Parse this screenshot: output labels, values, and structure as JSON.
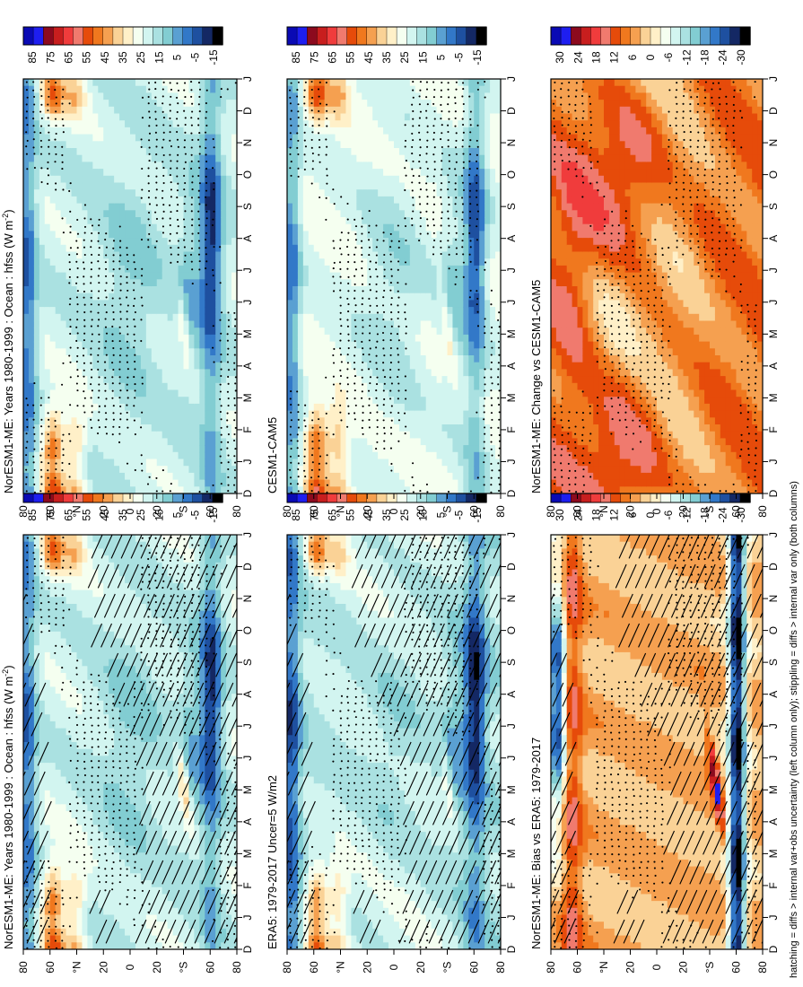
{
  "figure": {
    "footer": "hatching = diffs > internal var+obs uncertainty (left column only); stippling = diffs > internal var only (both columns)"
  },
  "chart_data": [
    {
      "type": "heatmap",
      "panel": "left-top",
      "title": "NorESM1-ME: Years 1980-1999 : Ocean : hfss (W m",
      "title_sup": "-2",
      "title_close": ")",
      "months": [
        "D",
        "J",
        "F",
        "M",
        "A",
        "M",
        "J",
        "J",
        "A",
        "S",
        "O",
        "N",
        "D",
        "J"
      ],
      "lat_ticks": [
        "80",
        "60",
        "°N",
        "20",
        "0",
        "20",
        "°S",
        "60",
        "80"
      ],
      "colorbar": [
        "85",
        "75",
        "65",
        "55",
        "45",
        "35",
        "25",
        "15",
        "5",
        "-5",
        "-15"
      ],
      "scale": "abs",
      "hatching": true,
      "stippling": true
    },
    {
      "type": "heatmap",
      "panel": "right-top",
      "title": "NorESM1-ME: Years 1980-1999 : Ocean : hfss (W m",
      "title_sup": "-2",
      "title_close": ")",
      "months": [
        "D",
        "J",
        "F",
        "M",
        "A",
        "M",
        "J",
        "J",
        "A",
        "S",
        "O",
        "N",
        "D",
        "J"
      ],
      "lat_ticks": [
        "80",
        "60",
        "°N",
        "20",
        "0",
        "20",
        "°S",
        "60",
        "80"
      ],
      "colorbar": [
        "85",
        "75",
        "65",
        "55",
        "45",
        "35",
        "25",
        "15",
        "5",
        "-5",
        "-15"
      ],
      "scale": "abs",
      "hatching": false,
      "stippling": true
    },
    {
      "type": "heatmap",
      "panel": "left-middle",
      "title": "ERA5: 1979-2017 Uncer=5 W/m2",
      "months": [
        "D",
        "J",
        "F",
        "M",
        "A",
        "M",
        "J",
        "J",
        "A",
        "S",
        "O",
        "N",
        "D",
        "J"
      ],
      "lat_ticks": [
        "80",
        "60",
        "°N",
        "20",
        "0",
        "20",
        "°S",
        "60",
        "80"
      ],
      "colorbar": [
        "85",
        "75",
        "65",
        "55",
        "45",
        "35",
        "25",
        "15",
        "5",
        "-5",
        "-15"
      ],
      "scale": "abs",
      "hatching": true,
      "stippling": true
    },
    {
      "type": "heatmap",
      "panel": "right-middle",
      "title": "CESM1-CAM5",
      "months": [
        "D",
        "J",
        "F",
        "M",
        "A",
        "M",
        "J",
        "J",
        "A",
        "S",
        "O",
        "N",
        "D",
        "J"
      ],
      "lat_ticks": [
        "80",
        "60",
        "°N",
        "20",
        "0",
        "20",
        "°S",
        "60",
        "80"
      ],
      "colorbar": [
        "85",
        "75",
        "65",
        "55",
        "45",
        "35",
        "25",
        "15",
        "5",
        "-5",
        "-15"
      ],
      "scale": "abs",
      "hatching": false,
      "stippling": true
    },
    {
      "type": "heatmap",
      "panel": "left-bottom",
      "title": "NorESM1-ME: Bias vs ERA5: 1979-2017",
      "months": [
        "D",
        "J",
        "F",
        "M",
        "A",
        "M",
        "J",
        "J",
        "A",
        "S",
        "O",
        "N",
        "D",
        "J"
      ],
      "lat_ticks": [
        "80",
        "60",
        "°N",
        "20",
        "0",
        "20",
        "°S",
        "60",
        "80"
      ],
      "colorbar": [
        "30",
        "24",
        "18",
        "12",
        "6",
        "0",
        "-6",
        "-12",
        "-18",
        "-24",
        "-30"
      ],
      "scale": "diff",
      "hatching": true,
      "stippling": true
    },
    {
      "type": "heatmap",
      "panel": "right-bottom",
      "title": "NorESM1-ME: Change vs CESM1-CAM5",
      "months": [
        "D",
        "J",
        "F",
        "M",
        "A",
        "M",
        "J",
        "J",
        "A",
        "S",
        "O",
        "N",
        "D",
        "J"
      ],
      "lat_ticks": [
        "80",
        "60",
        "°N",
        "20",
        "0",
        "20",
        "°S",
        "60",
        "80"
      ],
      "colorbar": [
        "30",
        "24",
        "18",
        "12",
        "6",
        "0",
        "-6",
        "-12",
        "-18",
        "-24",
        "-30"
      ],
      "scale": "diff",
      "hatching": false,
      "stippling": true
    }
  ],
  "palette": [
    "#0a0ab4",
    "#1e1ef0",
    "#8c0a1e",
    "#c81e1e",
    "#f03c3c",
    "#f07a6e",
    "#e64b0a",
    "#f0781e",
    "#f5a050",
    "#fad296",
    "#fff0c8",
    "#f5fff0",
    "#d2f5f0",
    "#aae1e1",
    "#82cdd2",
    "#5aa0d2",
    "#3278c8",
    "#1e50a0",
    "#142864",
    "#000000"
  ]
}
